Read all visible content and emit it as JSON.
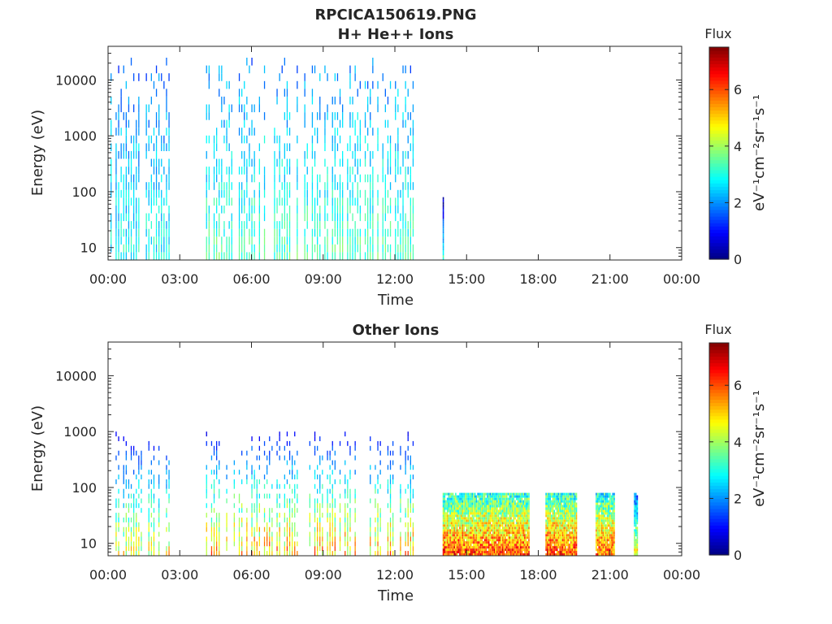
{
  "figure": {
    "filename": "RPCICA150619.PNG"
  },
  "chart_data": [
    {
      "type": "heatmap",
      "title": "H+ He++ Ions",
      "xlabel": "Time",
      "ylabel": "Energy (eV)",
      "y_scale": "log",
      "ylim": [
        6,
        40000
      ],
      "y_ticks": [
        10,
        100,
        1000,
        10000
      ],
      "y_tick_labels": [
        "10",
        "100",
        "1000",
        "10000"
      ],
      "x_ticks": [
        0,
        3,
        6,
        9,
        12,
        15,
        18,
        21,
        24
      ],
      "x_tick_labels": [
        "00:00",
        "03:00",
        "06:00",
        "09:00",
        "12:00",
        "15:00",
        "18:00",
        "21:00",
        "00:00"
      ],
      "colorbar": {
        "title": "Flux",
        "label": "eV⁻¹cm⁻²sr⁻¹s⁻¹",
        "range": [
          0,
          7.5
        ],
        "ticks": [
          0,
          2,
          4,
          6
        ],
        "tick_labels": [
          "0",
          "2",
          "4",
          "6"
        ],
        "colormap": "jet"
      },
      "data_blocks": [
        {
          "start_hour": 0.0,
          "end_hour": 2.6,
          "min_energy": 6,
          "max_energy": 25000,
          "peak_flux": 4.2
        },
        {
          "start_hour": 4.1,
          "end_hour": 12.8,
          "min_energy": 6,
          "max_energy": 25000,
          "peak_flux": 5.0
        },
        {
          "start_hour": 14.0,
          "end_hour": 14.05,
          "min_energy": 6,
          "max_energy": 80,
          "peak_flux": 3.8
        }
      ]
    },
    {
      "type": "heatmap",
      "title": "Other Ions",
      "xlabel": "Time",
      "ylabel": "Energy (eV)",
      "y_scale": "log",
      "ylim": [
        6,
        40000
      ],
      "y_ticks": [
        10,
        100,
        1000,
        10000
      ],
      "y_tick_labels": [
        "10",
        "100",
        "1000",
        "10000"
      ],
      "x_ticks": [
        0,
        3,
        6,
        9,
        12,
        15,
        18,
        21,
        24
      ],
      "x_tick_labels": [
        "00:00",
        "03:00",
        "06:00",
        "09:00",
        "12:00",
        "15:00",
        "18:00",
        "21:00",
        "00:00"
      ],
      "colorbar": {
        "title": "Flux",
        "label": "eV⁻¹cm⁻²sr⁻¹s⁻¹",
        "range": [
          0,
          7.5
        ],
        "ticks": [
          0,
          2,
          4,
          6
        ],
        "tick_labels": [
          "0",
          "2",
          "4",
          "6"
        ],
        "colormap": "jet"
      },
      "data_blocks": [
        {
          "start_hour": 0.0,
          "end_hour": 2.6,
          "min_energy": 6,
          "max_energy": 1000,
          "peak_flux": 5.8
        },
        {
          "start_hour": 4.1,
          "end_hour": 12.8,
          "min_energy": 6,
          "max_energy": 1000,
          "peak_flux": 6.5
        },
        {
          "start_hour": 14.0,
          "end_hour": 17.6,
          "min_energy": 6,
          "max_energy": 80,
          "peak_flux": 7.2
        },
        {
          "start_hour": 18.3,
          "end_hour": 19.6,
          "min_energy": 6,
          "max_energy": 80,
          "peak_flux": 7.2
        },
        {
          "start_hour": 20.4,
          "end_hour": 21.2,
          "min_energy": 6,
          "max_energy": 80,
          "peak_flux": 7.0
        },
        {
          "start_hour": 22.0,
          "end_hour": 22.15,
          "min_energy": 6,
          "max_energy": 80,
          "peak_flux": 5.5
        }
      ]
    }
  ]
}
